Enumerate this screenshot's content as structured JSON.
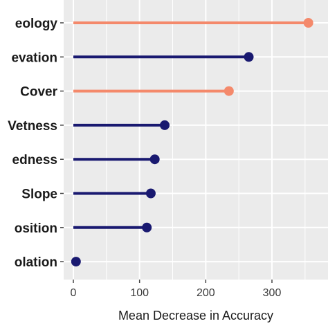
{
  "chart_data": {
    "type": "lollipop",
    "orientation": "horizontal",
    "categories": [
      "eology",
      "evation",
      "Cover",
      "Vetness",
      "edness",
      "Slope",
      "osition",
      "olation"
    ],
    "values": [
      355,
      265,
      235,
      138,
      123,
      117,
      111,
      4
    ],
    "point_colors": [
      "#f4896b",
      "#191970",
      "#f4896b",
      "#191970",
      "#191970",
      "#191970",
      "#191970",
      "#191970"
    ],
    "xlabel": "Mean Decrease in Accuracy",
    "ylabel": "",
    "xlim": [
      -12,
      372
    ],
    "xticks": [
      0,
      100,
      200,
      300
    ],
    "grid": true,
    "panel_background": "#ebebeb",
    "grid_color": "#ffffff"
  }
}
